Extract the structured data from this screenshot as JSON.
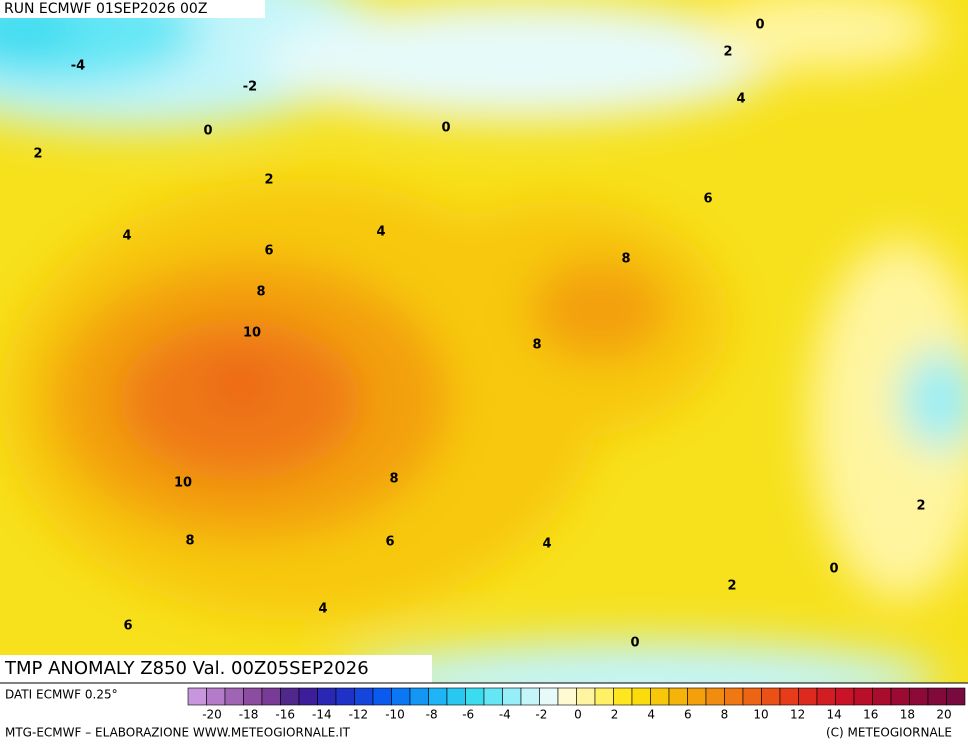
{
  "header": {
    "run": "RUN ECMWF 01SEP2026 00Z"
  },
  "map": {
    "title": "TMP ANOMALY Z850 Val. 00Z05SEP2026",
    "contour_labels": [
      -4,
      -2,
      0,
      0,
      0,
      2,
      4,
      2,
      2,
      6,
      4,
      4,
      6,
      8,
      8,
      10,
      8,
      10,
      8,
      8,
      6,
      4,
      2,
      0,
      2,
      4,
      6,
      0
    ]
  },
  "colorbar": {
    "ticks": [
      -20,
      -18,
      -16,
      -14,
      -12,
      -10,
      -8,
      -6,
      -4,
      -2,
      0,
      2,
      4,
      6,
      8,
      10,
      12,
      14,
      16,
      18,
      20
    ],
    "colors": [
      "#c896dc",
      "#b47cc8",
      "#a064b4",
      "#8c4ca0",
      "#783c96",
      "#50288c",
      "#3c1e9a",
      "#2828b4",
      "#1e32c8",
      "#1446dc",
      "#0a5af0",
      "#0a78f5",
      "#1496f5",
      "#1eb4f5",
      "#28c8f0",
      "#3cdcf0",
      "#64e6f5",
      "#96eef8",
      "#c3f5fa",
      "#e6fafa",
      "#fffad2",
      "#fff5a0",
      "#fff064",
      "#ffe61e",
      "#fadc0a",
      "#f7c80a",
      "#f5b40a",
      "#f3a00c",
      "#f18c10",
      "#ef7812",
      "#ed6414",
      "#eb5016",
      "#e63c1a",
      "#dc2a1e",
      "#d21e22",
      "#c81426",
      "#b90f2a",
      "#aa0c2d",
      "#9b0a32",
      "#8c0a37",
      "#800a3c",
      "#780a40"
    ]
  },
  "footer": {
    "data_source": "DATI ECMWF 0.25°",
    "credits": "MTG-ECMWF – ELABORAZIONE WWW.METEOGIORNALE.IT",
    "copyright": "(C) METEOGIORNALE"
  }
}
